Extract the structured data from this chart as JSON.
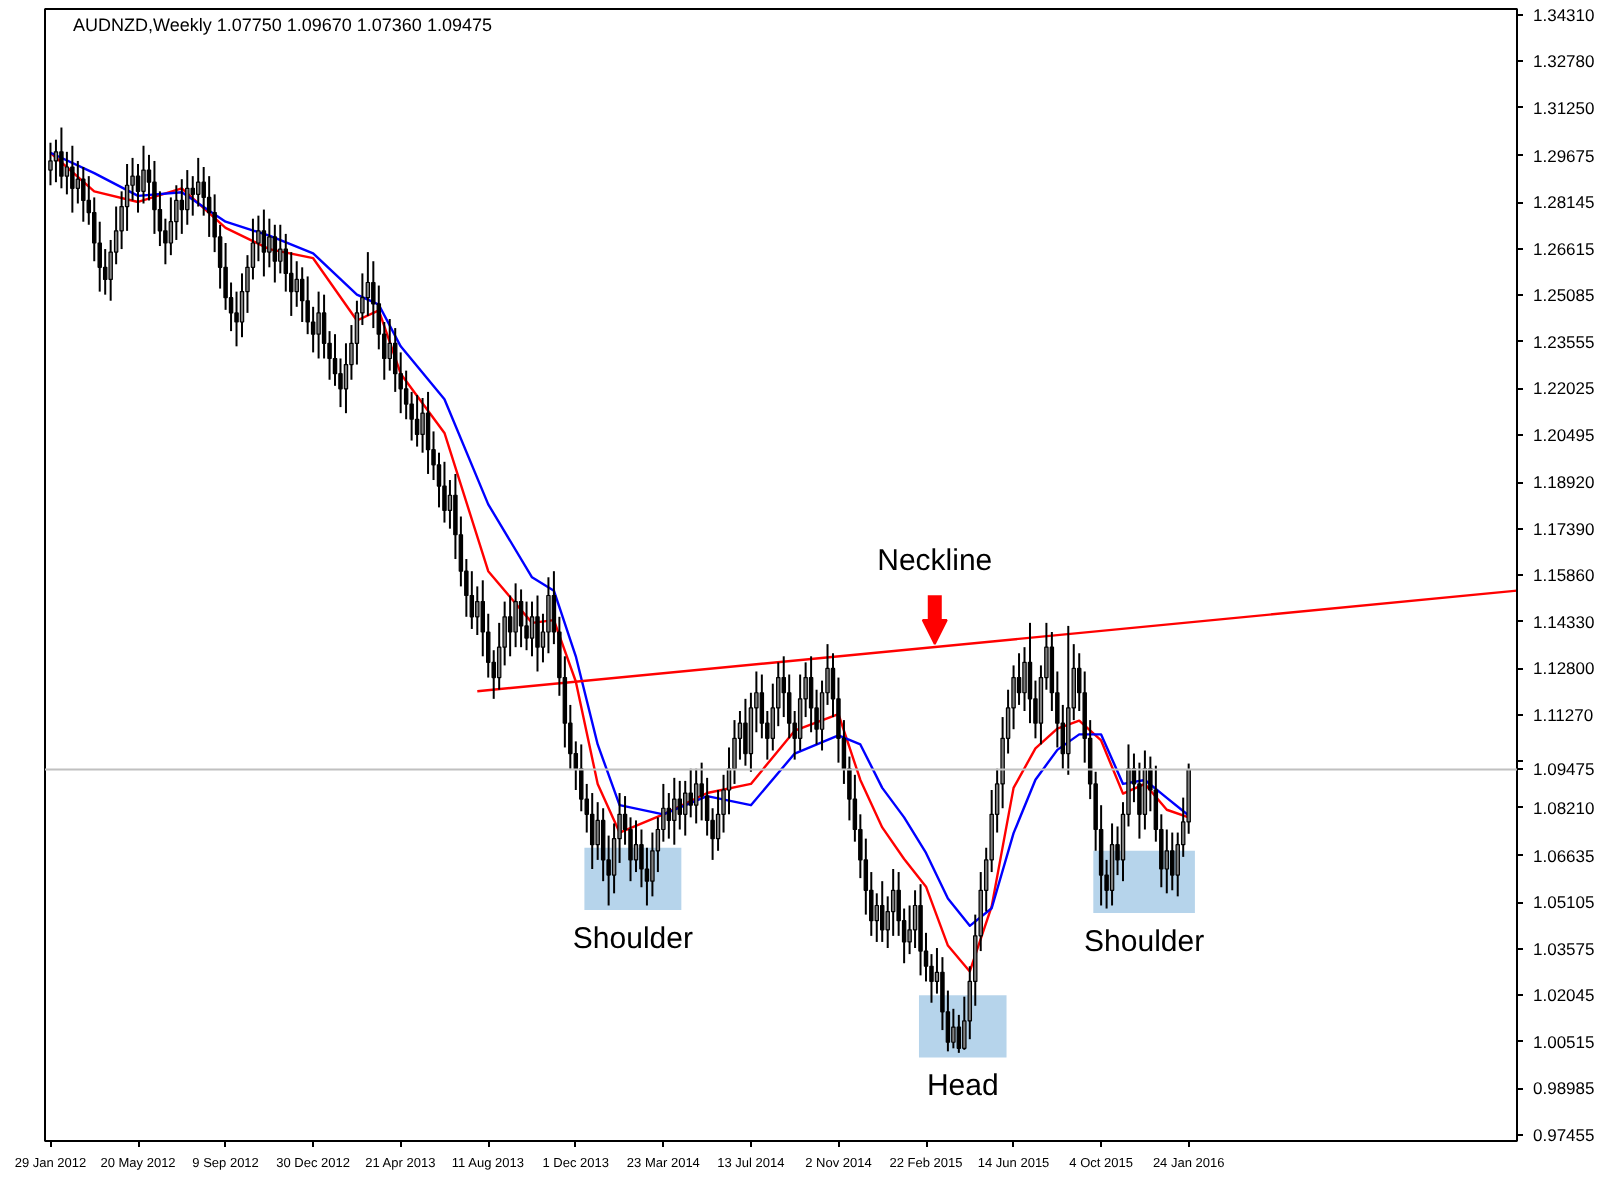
{
  "chart_data": {
    "type": "candlestick",
    "title": "AUDNZD,Weekly  1.07750 1.09670 1.07360 1.09475",
    "x": [
      "2012-01-29",
      "2012-02-05",
      "2012-02-12",
      "2012-02-19",
      "2012-02-26",
      "2012-03-04",
      "2012-03-11",
      "2012-03-18",
      "2012-03-25",
      "2012-04-01",
      "2012-04-08",
      "2012-04-15",
      "2012-04-22",
      "2012-04-29",
      "2012-05-06",
      "2012-05-13",
      "2012-05-20",
      "2012-05-27",
      "2012-06-03",
      "2012-06-10",
      "2012-06-17",
      "2012-06-24",
      "2012-07-01",
      "2012-07-08",
      "2012-07-15",
      "2012-07-22",
      "2012-07-29",
      "2012-08-05",
      "2012-08-12",
      "2012-08-19",
      "2012-08-26",
      "2012-09-02",
      "2012-09-09",
      "2012-09-16",
      "2012-09-23",
      "2012-09-30",
      "2012-10-07",
      "2012-10-14",
      "2012-10-21",
      "2012-10-28",
      "2012-11-04",
      "2012-11-11",
      "2012-11-18",
      "2012-11-25",
      "2012-12-02",
      "2012-12-09",
      "2012-12-16",
      "2012-12-23",
      "2012-12-30",
      "2013-01-06",
      "2013-01-13",
      "2013-01-20",
      "2013-01-27",
      "2013-02-03",
      "2013-02-10",
      "2013-02-17",
      "2013-02-24",
      "2013-03-03",
      "2013-03-10",
      "2013-03-17",
      "2013-03-24",
      "2013-03-31",
      "2013-04-07",
      "2013-04-14",
      "2013-04-21",
      "2013-04-28",
      "2013-05-05",
      "2013-05-12",
      "2013-05-19",
      "2013-05-26",
      "2013-06-02",
      "2013-06-09",
      "2013-06-16",
      "2013-06-23",
      "2013-06-30",
      "2013-07-07",
      "2013-07-14",
      "2013-07-21",
      "2013-07-28",
      "2013-08-04",
      "2013-08-11",
      "2013-08-18",
      "2013-08-25",
      "2013-09-01",
      "2013-09-08",
      "2013-09-15",
      "2013-09-22",
      "2013-09-29",
      "2013-10-06",
      "2013-10-13",
      "2013-10-20",
      "2013-10-27",
      "2013-11-03",
      "2013-11-10",
      "2013-11-17",
      "2013-11-24",
      "2013-12-01",
      "2013-12-08",
      "2013-12-15",
      "2013-12-22",
      "2013-12-29",
      "2014-01-05",
      "2014-01-12",
      "2014-01-19",
      "2014-01-26",
      "2014-02-02",
      "2014-02-09",
      "2014-02-16",
      "2014-02-23",
      "2014-03-02",
      "2014-03-09",
      "2014-03-16",
      "2014-03-23",
      "2014-03-30",
      "2014-04-06",
      "2014-04-13",
      "2014-04-20",
      "2014-04-27",
      "2014-05-04",
      "2014-05-11",
      "2014-05-18",
      "2014-05-25",
      "2014-06-01",
      "2014-06-08",
      "2014-06-15",
      "2014-06-22",
      "2014-06-29",
      "2014-07-06",
      "2014-07-13",
      "2014-07-20",
      "2014-07-27",
      "2014-08-03",
      "2014-08-10",
      "2014-08-17",
      "2014-08-24",
      "2014-08-31",
      "2014-09-07",
      "2014-09-14",
      "2014-09-21",
      "2014-09-28",
      "2014-10-05",
      "2014-10-12",
      "2014-10-19",
      "2014-10-26",
      "2014-11-02",
      "2014-11-09",
      "2014-11-16",
      "2014-11-23",
      "2014-11-30",
      "2014-12-07",
      "2014-12-14",
      "2014-12-21",
      "2014-12-28",
      "2015-01-04",
      "2015-01-11",
      "2015-01-18",
      "2015-01-25",
      "2015-02-01",
      "2015-02-08",
      "2015-02-15",
      "2015-02-22",
      "2015-03-01",
      "2015-03-08",
      "2015-03-15",
      "2015-03-22",
      "2015-03-29",
      "2015-04-05",
      "2015-04-12",
      "2015-04-19",
      "2015-04-26",
      "2015-05-03",
      "2015-05-10",
      "2015-05-17",
      "2015-05-24",
      "2015-05-31",
      "2015-06-07",
      "2015-06-14",
      "2015-06-21",
      "2015-06-28",
      "2015-07-05",
      "2015-07-12",
      "2015-07-19",
      "2015-07-26",
      "2015-08-02",
      "2015-08-09",
      "2015-08-16",
      "2015-08-23",
      "2015-08-30",
      "2015-09-06",
      "2015-09-13",
      "2015-09-20",
      "2015-09-27",
      "2015-10-04",
      "2015-10-11",
      "2015-10-18",
      "2015-10-25",
      "2015-11-01",
      "2015-11-08",
      "2015-11-15",
      "2015-11-22",
      "2015-11-29",
      "2015-12-06",
      "2015-12-13",
      "2015-12-20",
      "2015-12-27",
      "2016-01-03",
      "2016-01-10",
      "2016-01-17",
      "2016-01-24"
    ],
    "ohlc": [
      [
        1.292,
        1.301,
        1.287,
        1.295
      ],
      [
        1.295,
        1.302,
        1.288,
        1.298
      ],
      [
        1.298,
        1.306,
        1.286,
        1.29
      ],
      [
        1.29,
        1.298,
        1.284,
        1.293
      ],
      [
        1.293,
        1.3,
        1.278,
        1.286
      ],
      [
        1.286,
        1.295,
        1.281,
        1.289
      ],
      [
        1.289,
        1.293,
        1.275,
        1.282
      ],
      [
        1.282,
        1.29,
        1.274,
        1.278
      ],
      [
        1.278,
        1.283,
        1.262,
        1.268
      ],
      [
        1.268,
        1.275,
        1.252,
        1.26
      ],
      [
        1.26,
        1.266,
        1.251,
        1.256
      ],
      [
        1.256,
        1.269,
        1.249,
        1.265
      ],
      [
        1.265,
        1.28,
        1.261,
        1.272
      ],
      [
        1.272,
        1.285,
        1.266,
        1.28
      ],
      [
        1.28,
        1.294,
        1.272,
        1.287
      ],
      [
        1.287,
        1.296,
        1.282,
        1.29
      ],
      [
        1.29,
        1.294,
        1.278,
        1.285
      ],
      [
        1.285,
        1.3,
        1.281,
        1.292
      ],
      [
        1.292,
        1.297,
        1.282,
        1.288
      ],
      [
        1.288,
        1.295,
        1.271,
        1.279
      ],
      [
        1.279,
        1.285,
        1.267,
        1.272
      ],
      [
        1.272,
        1.276,
        1.261,
        1.268
      ],
      [
        1.268,
        1.283,
        1.264,
        1.275
      ],
      [
        1.275,
        1.287,
        1.269,
        1.282
      ],
      [
        1.282,
        1.289,
        1.271,
        1.279
      ],
      [
        1.279,
        1.292,
        1.274,
        1.286
      ],
      [
        1.286,
        1.29,
        1.277,
        1.284
      ],
      [
        1.284,
        1.296,
        1.28,
        1.288
      ],
      [
        1.288,
        1.293,
        1.277,
        1.283
      ],
      [
        1.283,
        1.29,
        1.27,
        1.278
      ],
      [
        1.278,
        1.284,
        1.265,
        1.27
      ],
      [
        1.27,
        1.274,
        1.253,
        1.26
      ],
      [
        1.26,
        1.268,
        1.246,
        1.25
      ],
      [
        1.25,
        1.255,
        1.239,
        1.245
      ],
      [
        1.245,
        1.252,
        1.234,
        1.242
      ],
      [
        1.242,
        1.258,
        1.237,
        1.252
      ],
      [
        1.252,
        1.264,
        1.245,
        1.26
      ],
      [
        1.26,
        1.276,
        1.256,
        1.268
      ],
      [
        1.268,
        1.277,
        1.262,
        1.272
      ],
      [
        1.272,
        1.279,
        1.257,
        1.265
      ],
      [
        1.265,
        1.276,
        1.26,
        1.27
      ],
      [
        1.27,
        1.274,
        1.255,
        1.262
      ],
      [
        1.262,
        1.274,
        1.258,
        1.266
      ],
      [
        1.266,
        1.271,
        1.252,
        1.258
      ],
      [
        1.258,
        1.265,
        1.244,
        1.252
      ],
      [
        1.252,
        1.262,
        1.247,
        1.256
      ],
      [
        1.256,
        1.26,
        1.242,
        1.249
      ],
      [
        1.249,
        1.257,
        1.238,
        1.242
      ],
      [
        1.242,
        1.247,
        1.232,
        1.238
      ],
      [
        1.238,
        1.252,
        1.23,
        1.245
      ],
      [
        1.245,
        1.251,
        1.23,
        1.235
      ],
      [
        1.235,
        1.239,
        1.223,
        1.23
      ],
      [
        1.23,
        1.238,
        1.221,
        1.225
      ],
      [
        1.225,
        1.23,
        1.214,
        1.22
      ],
      [
        1.22,
        1.235,
        1.212,
        1.228
      ],
      [
        1.228,
        1.241,
        1.223,
        1.235
      ],
      [
        1.235,
        1.249,
        1.228,
        1.245
      ],
      [
        1.245,
        1.258,
        1.241,
        1.25
      ],
      [
        1.25,
        1.265,
        1.244,
        1.255
      ],
      [
        1.255,
        1.262,
        1.24,
        1.248
      ],
      [
        1.248,
        1.254,
        1.233,
        1.238
      ],
      [
        1.238,
        1.242,
        1.223,
        1.23
      ],
      [
        1.23,
        1.243,
        1.226,
        1.235
      ],
      [
        1.235,
        1.24,
        1.219,
        1.225
      ],
      [
        1.225,
        1.232,
        1.212,
        1.22
      ],
      [
        1.22,
        1.226,
        1.21,
        1.215
      ],
      [
        1.215,
        1.219,
        1.203,
        1.21
      ],
      [
        1.21,
        1.218,
        1.201,
        1.205
      ],
      [
        1.205,
        1.217,
        1.199,
        1.212
      ],
      [
        1.212,
        1.219,
        1.192,
        1.2
      ],
      [
        1.2,
        1.206,
        1.19,
        1.195
      ],
      [
        1.195,
        1.199,
        1.181,
        1.188
      ],
      [
        1.188,
        1.196,
        1.176,
        1.18
      ],
      [
        1.18,
        1.19,
        1.174,
        1.185
      ],
      [
        1.185,
        1.192,
        1.164,
        1.172
      ],
      [
        1.172,
        1.178,
        1.155,
        1.16
      ],
      [
        1.16,
        1.164,
        1.145,
        1.152
      ],
      [
        1.152,
        1.16,
        1.141,
        1.145
      ],
      [
        1.145,
        1.155,
        1.139,
        1.15
      ],
      [
        1.15,
        1.157,
        1.132,
        1.14
      ],
      [
        1.14,
        1.146,
        1.125,
        1.13
      ],
      [
        1.13,
        1.134,
        1.118,
        1.125
      ],
      [
        1.125,
        1.143,
        1.121,
        1.135
      ],
      [
        1.135,
        1.15,
        1.129,
        1.145
      ],
      [
        1.145,
        1.152,
        1.132,
        1.14
      ],
      [
        1.14,
        1.156,
        1.135,
        1.15
      ],
      [
        1.15,
        1.154,
        1.135,
        1.142
      ],
      [
        1.142,
        1.15,
        1.134,
        1.138
      ],
      [
        1.138,
        1.15,
        1.132,
        1.145
      ],
      [
        1.145,
        1.152,
        1.127,
        1.135
      ],
      [
        1.135,
        1.146,
        1.13,
        1.14
      ],
      [
        1.14,
        1.158,
        1.133,
        1.152
      ],
      [
        1.152,
        1.16,
        1.136,
        1.14
      ],
      [
        1.14,
        1.145,
        1.119,
        1.125
      ],
      [
        1.125,
        1.132,
        1.102,
        1.11
      ],
      [
        1.11,
        1.116,
        1.095,
        1.1
      ],
      [
        1.1,
        1.104,
        1.088,
        1.095
      ],
      [
        1.095,
        1.103,
        1.081,
        1.085
      ],
      [
        1.085,
        1.09,
        1.074,
        1.08
      ],
      [
        1.08,
        1.087,
        1.062,
        1.07
      ],
      [
        1.07,
        1.084,
        1.065,
        1.078
      ],
      [
        1.078,
        1.082,
        1.058,
        1.065
      ],
      [
        1.065,
        1.073,
        1.05,
        1.06
      ],
      [
        1.06,
        1.077,
        1.054,
        1.072
      ],
      [
        1.072,
        1.087,
        1.064,
        1.08
      ],
      [
        1.08,
        1.086,
        1.07,
        1.075
      ],
      [
        1.075,
        1.079,
        1.058,
        1.065
      ],
      [
        1.065,
        1.078,
        1.061,
        1.07
      ],
      [
        1.07,
        1.075,
        1.056,
        1.062
      ],
      [
        1.062,
        1.069,
        1.05,
        1.058
      ],
      [
        1.058,
        1.074,
        1.053,
        1.068
      ],
      [
        1.068,
        1.079,
        1.061,
        1.075
      ],
      [
        1.075,
        1.09,
        1.071,
        1.082
      ],
      [
        1.082,
        1.087,
        1.072,
        1.078
      ],
      [
        1.078,
        1.092,
        1.07,
        1.085
      ],
      [
        1.085,
        1.091,
        1.075,
        1.08
      ],
      [
        1.08,
        1.091,
        1.073,
        1.087
      ],
      [
        1.087,
        1.095,
        1.079,
        1.083
      ],
      [
        1.083,
        1.095,
        1.077,
        1.09
      ],
      [
        1.09,
        1.097,
        1.078,
        1.086
      ],
      [
        1.086,
        1.092,
        1.073,
        1.078
      ],
      [
        1.078,
        1.082,
        1.065,
        1.072
      ],
      [
        1.072,
        1.088,
        1.068,
        1.08
      ],
      [
        1.08,
        1.093,
        1.074,
        1.088
      ],
      [
        1.088,
        1.102,
        1.08,
        1.095
      ],
      [
        1.095,
        1.111,
        1.09,
        1.105
      ],
      [
        1.105,
        1.114,
        1.098,
        1.11
      ],
      [
        1.11,
        1.118,
        1.096,
        1.1
      ],
      [
        1.1,
        1.12,
        1.094,
        1.115
      ],
      [
        1.115,
        1.127,
        1.107,
        1.12
      ],
      [
        1.12,
        1.126,
        1.105,
        1.11
      ],
      [
        1.11,
        1.114,
        1.098,
        1.105
      ],
      [
        1.105,
        1.123,
        1.101,
        1.115
      ],
      [
        1.115,
        1.13,
        1.109,
        1.125
      ],
      [
        1.125,
        1.132,
        1.112,
        1.12
      ],
      [
        1.12,
        1.126,
        1.105,
        1.11
      ],
      [
        1.11,
        1.114,
        1.098,
        1.105
      ],
      [
        1.105,
        1.126,
        1.101,
        1.118
      ],
      [
        1.118,
        1.13,
        1.112,
        1.125
      ],
      [
        1.125,
        1.132,
        1.107,
        1.115
      ],
      [
        1.115,
        1.121,
        1.103,
        1.108
      ],
      [
        1.108,
        1.124,
        1.101,
        1.12
      ],
      [
        1.12,
        1.136,
        1.116,
        1.128
      ],
      [
        1.128,
        1.133,
        1.112,
        1.118
      ],
      [
        1.118,
        1.125,
        1.097,
        1.105
      ],
      [
        1.105,
        1.111,
        1.09,
        1.095
      ],
      [
        1.095,
        1.099,
        1.078,
        1.085
      ],
      [
        1.085,
        1.093,
        1.071,
        1.075
      ],
      [
        1.075,
        1.08,
        1.059,
        1.065
      ],
      [
        1.065,
        1.072,
        1.047,
        1.055
      ],
      [
        1.055,
        1.061,
        1.04,
        1.045
      ],
      [
        1.045,
        1.054,
        1.038,
        1.05
      ],
      [
        1.05,
        1.058,
        1.038,
        1.042
      ],
      [
        1.042,
        1.053,
        1.036,
        1.048
      ],
      [
        1.048,
        1.062,
        1.04,
        1.055
      ],
      [
        1.055,
        1.061,
        1.04,
        1.045
      ],
      [
        1.045,
        1.049,
        1.031,
        1.038
      ],
      [
        1.038,
        1.05,
        1.034,
        1.042
      ],
      [
        1.042,
        1.055,
        1.036,
        1.05
      ],
      [
        1.05,
        1.057,
        1.027,
        1.035
      ],
      [
        1.035,
        1.041,
        1.025,
        1.03
      ],
      [
        1.03,
        1.034,
        1.018,
        1.025
      ],
      [
        1.025,
        1.036,
        1.021,
        1.028
      ],
      [
        1.028,
        1.033,
        1.009,
        1.015
      ],
      [
        1.015,
        1.022,
        1.002,
        1.005
      ],
      [
        1.005,
        1.016,
        1.003,
        1.01
      ],
      [
        1.01,
        1.014,
        1.0015,
        1.003
      ],
      [
        1.003,
        1.02,
        1.0025,
        1.012
      ],
      [
        1.012,
        1.03,
        1.006,
        1.025
      ],
      [
        1.025,
        1.047,
        1.017,
        1.04
      ],
      [
        1.04,
        1.061,
        1.035,
        1.055
      ],
      [
        1.055,
        1.069,
        1.048,
        1.065
      ],
      [
        1.065,
        1.088,
        1.061,
        1.08
      ],
      [
        1.08,
        1.095,
        1.074,
        1.09
      ],
      [
        1.09,
        1.112,
        1.082,
        1.105
      ],
      [
        1.105,
        1.121,
        1.1,
        1.115
      ],
      [
        1.115,
        1.129,
        1.108,
        1.125
      ],
      [
        1.125,
        1.133,
        1.116,
        1.12
      ],
      [
        1.12,
        1.135,
        1.114,
        1.13
      ],
      [
        1.13,
        1.143,
        1.11,
        1.118
      ],
      [
        1.118,
        1.124,
        1.105,
        1.11
      ],
      [
        1.11,
        1.129,
        1.103,
        1.125
      ],
      [
        1.125,
        1.143,
        1.121,
        1.135
      ],
      [
        1.135,
        1.14,
        1.114,
        1.12
      ],
      [
        1.12,
        1.127,
        1.102,
        1.11
      ],
      [
        1.11,
        1.116,
        1.095,
        1.1
      ],
      [
        1.1,
        1.142,
        1.093,
        1.115
      ],
      [
        1.115,
        1.136,
        1.111,
        1.128
      ],
      [
        1.128,
        1.133,
        1.114,
        1.12
      ],
      [
        1.12,
        1.127,
        1.097,
        1.105
      ],
      [
        1.105,
        1.111,
        1.085,
        1.09
      ],
      [
        1.09,
        1.094,
        1.068,
        1.075
      ],
      [
        1.075,
        1.083,
        1.05,
        1.06
      ],
      [
        1.06,
        1.065,
        1.049,
        1.055
      ],
      [
        1.055,
        1.077,
        1.05,
        1.07
      ],
      [
        1.07,
        1.076,
        1.06,
        1.065
      ],
      [
        1.065,
        1.084,
        1.058,
        1.08
      ],
      [
        1.08,
        1.103,
        1.076,
        1.095
      ],
      [
        1.095,
        1.1,
        1.084,
        1.09
      ],
      [
        1.09,
        1.097,
        1.072,
        1.08
      ],
      [
        1.08,
        1.101,
        1.075,
        1.095
      ],
      [
        1.095,
        1.099,
        1.081,
        1.088
      ],
      [
        1.088,
        1.096,
        1.071,
        1.075
      ],
      [
        1.075,
        1.08,
        1.056,
        1.062
      ],
      [
        1.062,
        1.075,
        1.054,
        1.068
      ],
      [
        1.068,
        1.074,
        1.055,
        1.06
      ],
      [
        1.06,
        1.074,
        1.053,
        1.07
      ],
      [
        1.07,
        1.0855,
        1.066,
        1.0775
      ],
      [
        1.0775,
        1.0967,
        1.0736,
        1.09475
      ]
    ],
    "series": [
      {
        "type": "line",
        "color": "#ff0000",
        "x": [
          "2012-01-29",
          "2012-03-25",
          "2012-05-20",
          "2012-07-15",
          "2012-09-09",
          "2012-11-04",
          "2012-12-30",
          "2013-02-24",
          "2013-03-24",
          "2013-04-21",
          "2013-06-16",
          "2013-08-11",
          "2013-10-06",
          "2013-11-03",
          "2013-12-01",
          "2013-12-29",
          "2014-01-26",
          "2014-03-23",
          "2014-05-18",
          "2014-07-13",
          "2014-09-07",
          "2014-11-02",
          "2014-11-30",
          "2014-12-28",
          "2015-01-25",
          "2015-02-22",
          "2015-03-22",
          "2015-04-19",
          "2015-05-17",
          "2015-06-14",
          "2015-07-12",
          "2015-08-09",
          "2015-09-06",
          "2015-10-04",
          "2015-11-01",
          "2015-11-29",
          "2015-12-27",
          "2016-01-24"
        ],
        "values": [
          1.2977,
          1.285,
          1.2815,
          1.286,
          1.273,
          1.266,
          1.263,
          1.2425,
          1.2458,
          1.225,
          1.2055,
          1.16,
          1.143,
          1.1439,
          1.1237,
          1.09,
          1.074,
          1.08,
          1.087,
          1.09,
          1.1075,
          1.113,
          1.0913,
          1.0757,
          1.0653,
          1.0562,
          1.0368,
          1.0283,
          1.0497,
          1.0887,
          1.1017,
          1.1082,
          1.1108,
          1.1043,
          1.0868,
          1.09,
          1.0815,
          1.079
        ]
      },
      {
        "type": "line",
        "color": "#0000ff",
        "x": [
          "2012-01-29",
          "2012-03-25",
          "2012-05-20",
          "2012-07-15",
          "2012-09-09",
          "2012-11-04",
          "2012-12-30",
          "2013-02-24",
          "2013-03-24",
          "2013-04-21",
          "2013-06-16",
          "2013-08-11",
          "2013-10-06",
          "2013-11-03",
          "2013-12-01",
          "2013-12-29",
          "2014-01-26",
          "2014-03-23",
          "2014-05-18",
          "2014-07-13",
          "2014-09-07",
          "2014-11-02",
          "2014-11-30",
          "2014-12-28",
          "2015-01-25",
          "2015-02-22",
          "2015-03-22",
          "2015-04-19",
          "2015-05-17",
          "2015-06-14",
          "2015-07-12",
          "2015-08-09",
          "2015-09-06",
          "2015-10-04",
          "2015-11-01",
          "2015-11-29",
          "2015-12-27",
          "2016-01-24"
        ],
        "values": [
          1.2977,
          1.291,
          1.2835,
          1.2847,
          1.275,
          1.2704,
          1.2646,
          1.251,
          1.2477,
          1.234,
          1.2166,
          1.182,
          1.158,
          1.1536,
          1.132,
          1.103,
          1.083,
          1.08,
          1.086,
          1.083,
          1.1,
          1.106,
          1.103,
          1.0887,
          1.079,
          1.0673,
          1.0523,
          1.0433,
          1.0491,
          1.0738,
          1.0914,
          1.1012,
          1.1063,
          1.1063,
          1.09,
          1.0913,
          1.0854,
          1.0796
        ]
      },
      {
        "type": "line",
        "name": "Neckline",
        "color": "#ff0000",
        "x": [
          "2013-07-28",
          "2017-03-19"
        ],
        "values": [
          1.1205,
          1.1536
        ]
      }
    ],
    "xlim": [
      "2012-01-22",
      "2017-03-19"
    ],
    "xticks": [
      {
        "value": "2012-01-29",
        "label": "29 Jan 2012"
      },
      {
        "value": "2012-05-20",
        "label": "20 May 2012"
      },
      {
        "value": "2012-09-09",
        "label": "9 Sep 2012"
      },
      {
        "value": "2012-12-30",
        "label": "30 Dec 2012"
      },
      {
        "value": "2013-04-21",
        "label": "21 Apr 2013"
      },
      {
        "value": "2013-08-11",
        "label": "11 Aug 2013"
      },
      {
        "value": "2013-12-01",
        "label": "1 Dec 2013"
      },
      {
        "value": "2014-03-23",
        "label": "23 Mar 2014"
      },
      {
        "value": "2014-07-13",
        "label": "13 Jul 2014"
      },
      {
        "value": "2014-11-02",
        "label": "2 Nov 2014"
      },
      {
        "value": "2015-02-22",
        "label": "22 Feb 2015"
      },
      {
        "value": "2015-06-14",
        "label": "14 Jun 2015"
      },
      {
        "value": "2015-10-04",
        "label": "4 Oct 2015"
      },
      {
        "value": "2016-01-24",
        "label": "24 Jan 2016"
      }
    ],
    "ylim": [
      0.9725,
      1.345
    ],
    "yticks": [
      {
        "value": 1.3431,
        "label": "1.34310"
      },
      {
        "value": 1.3278,
        "label": "1.32780"
      },
      {
        "value": 1.3125,
        "label": "1.31250"
      },
      {
        "value": 1.29675,
        "label": "1.29675"
      },
      {
        "value": 1.28145,
        "label": "1.28145"
      },
      {
        "value": 1.26615,
        "label": "1.26615"
      },
      {
        "value": 1.25085,
        "label": "1.25085"
      },
      {
        "value": 1.23555,
        "label": "1.23555"
      },
      {
        "value": 1.22025,
        "label": "1.22025"
      },
      {
        "value": 1.20495,
        "label": "1.20495"
      },
      {
        "value": 1.1892,
        "label": "1.18920"
      },
      {
        "value": 1.1739,
        "label": "1.17390"
      },
      {
        "value": 1.1586,
        "label": "1.15860"
      },
      {
        "value": 1.1433,
        "label": "1.14330"
      },
      {
        "value": 1.128,
        "label": "1.12800"
      },
      {
        "value": 1.1127,
        "label": "1.11270"
      },
      {
        "value": 1.0974,
        "label": null
      },
      {
        "value": 1.0821,
        "label": "1.08210"
      },
      {
        "value": 1.06635,
        "label": "1.06635"
      },
      {
        "value": 1.05105,
        "label": "1.05105"
      },
      {
        "value": 1.03575,
        "label": "1.03575"
      },
      {
        "value": 1.02045,
        "label": "1.02045"
      },
      {
        "value": 1.00515,
        "label": "1.00515"
      },
      {
        "value": 0.98985,
        "label": "0.98985"
      },
      {
        "value": 0.97455,
        "label": "0.97455"
      }
    ],
    "ref_lines": [
      {
        "axis": "y",
        "value": 1.09475,
        "label": "1.09475",
        "color": "#c0c0c0"
      }
    ],
    "bands": [
      {
        "axis": "x",
        "from": "2013-12-12",
        "to": "2014-04-15",
        "color": "#a9cde8",
        "label": "Shoulder"
      },
      {
        "axis": "x",
        "from": "2015-02-13",
        "to": "2015-06-05",
        "color": "#a9cde8",
        "label": "Head"
      },
      {
        "axis": "x",
        "from": "2015-09-24",
        "to": "2016-02-01",
        "color": "#a9cde8",
        "label": "Shoulder"
      }
    ]
  }
}
